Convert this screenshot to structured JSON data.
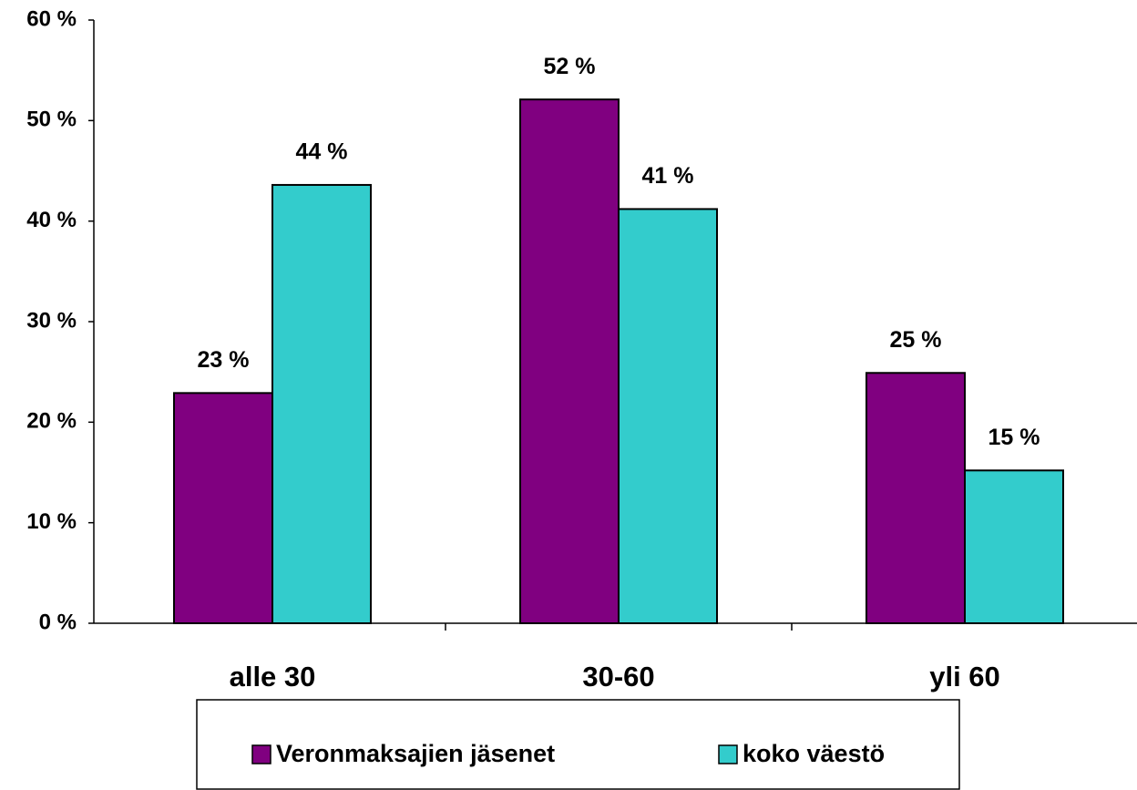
{
  "chart_data": {
    "type": "bar",
    "categories": [
      "alle 30",
      "30-60",
      "yli 60"
    ],
    "series": [
      {
        "name": "Veronmaksajien jäsenet",
        "color": "#800080",
        "values": [
          22.9,
          52.1,
          24.9
        ],
        "value_labels": [
          "23 %",
          "52 %",
          "25 %"
        ]
      },
      {
        "name": "koko väestö",
        "color": "#33cccc",
        "values": [
          43.6,
          41.2,
          15.2
        ],
        "value_labels": [
          "44 %",
          "41 %",
          "15 %"
        ]
      }
    ],
    "ylim": [
      0,
      60
    ],
    "yticks": [
      {
        "value": 0,
        "label": "0 %"
      },
      {
        "value": 10,
        "label": "10 %"
      },
      {
        "value": 20,
        "label": "20 %"
      },
      {
        "value": 30,
        "label": "30 %"
      },
      {
        "value": 40,
        "label": "40 %"
      },
      {
        "value": 50,
        "label": "50 %"
      },
      {
        "value": 60,
        "label": "60 %"
      }
    ],
    "legend": "bottom"
  }
}
